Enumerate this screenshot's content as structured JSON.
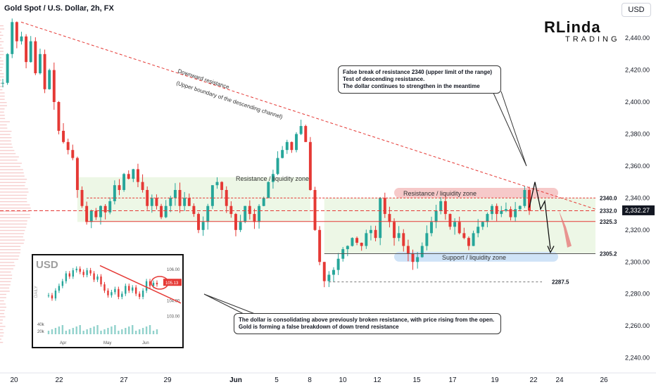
{
  "header": {
    "title": "Gold Spot / U.S. Dollar, 2h, FX"
  },
  "currency_button": "USD",
  "logo": {
    "main": "RLinda",
    "sub": "TRADING"
  },
  "annotations": {
    "downtrend_line1": "Downward resistance",
    "downtrend_line2": "(Upper boundary of the descending channel)",
    "zone_left": "Resistance / liquidity zone",
    "zone_right_res": "Resistance / liquidity zone",
    "zone_right_sup": "Support / liquidity zone",
    "callout_top": [
      "False break of resistance 2340 (upper limit of the range)",
      "Test of descending resistance.",
      "The dollar continues to strengthen in the meantime"
    ],
    "callout_bottom": [
      "The dollar is consolidating above previously broken resistance, with price rising from the open.",
      "Gold is forming a false breakdown of down trend resistance"
    ]
  },
  "colors": {
    "up": "#26a69a",
    "down": "#e53935",
    "line_red": "#e53935",
    "zone_green": "#e8f5e0",
    "zone_red": "#f6c9c9",
    "zone_blue": "#cfe3f7",
    "price_tag": "#131722"
  },
  "chart_data": {
    "type": "candlestick",
    "symbol": "Gold Spot / U.S. Dollar",
    "timeframe": "2h",
    "ylim": [
      2235,
      2455
    ],
    "yticks": [
      2440,
      2420,
      2400,
      2380,
      2360,
      2340,
      2320,
      2300,
      2280,
      2260,
      2240
    ],
    "ytick_labels": [
      "2,440.00",
      "2,420.00",
      "2,400.00",
      "2,380.00",
      "2,360.00",
      "2,340.00",
      "2,320.00",
      "2,300.00",
      "2,280.00",
      "2,260.00",
      "2,240.00"
    ],
    "xticks": [
      "20",
      "22",
      "27",
      "29",
      "Jun",
      "5",
      "8",
      "10",
      "12",
      "15",
      "17",
      "19",
      "22",
      "24",
      "26"
    ],
    "levels": [
      {
        "label": "2340.0",
        "value": 2340
      },
      {
        "label": "2332.0",
        "value": 2332
      },
      {
        "label": "2325.3",
        "value": 2325.3
      },
      {
        "label": "2305.2",
        "value": 2305.2
      },
      {
        "label": "2287.5",
        "value": 2287.5
      }
    ],
    "last_price": {
      "label": "2,332.27",
      "value": 2332.27
    },
    "zones": [
      {
        "label": "Resistance / liquidity zone",
        "low": 2325,
        "high": 2353
      },
      {
        "label": "Resistance / liquidity zone",
        "low": 2340,
        "high": 2345
      },
      {
        "label": "Support / liquidity zone",
        "low": 2298,
        "high": 2305
      }
    ],
    "trendline": {
      "label": "Downward resistance",
      "from": 2450,
      "to": 2333
    },
    "path": [
      2412,
      2430,
      2450,
      2438,
      2441,
      2425,
      2438,
      2418,
      2430,
      2408,
      2420,
      2400,
      2382,
      2375,
      2370,
      2365,
      2345,
      2335,
      2325,
      2332,
      2328,
      2335,
      2331,
      2338,
      2348,
      2345,
      2355,
      2352,
      2358,
      2350,
      2345,
      2335,
      2340,
      2335,
      2328,
      2335,
      2340,
      2345,
      2335,
      2340,
      2335,
      2330,
      2320,
      2325,
      2335,
      2348,
      2350,
      2345,
      2335,
      2330,
      2320,
      2325,
      2335,
      2330,
      2325,
      2335,
      2340,
      2350,
      2355,
      2365,
      2370,
      2375,
      2370,
      2380,
      2385,
      2375,
      2345,
      2320,
      2300,
      2288,
      2292,
      2295,
      2302,
      2308,
      2310,
      2315,
      2312,
      2310,
      2318,
      2320,
      2315,
      2340,
      2330,
      2325,
      2315,
      2318,
      2310,
      2305,
      2300,
      2303,
      2310,
      2318,
      2325,
      2332,
      2338,
      2330,
      2322,
      2325,
      2318,
      2315,
      2310,
      2318,
      2322,
      2325,
      2330,
      2335,
      2330,
      2332,
      2333,
      2328,
      2333,
      2335,
      2345,
      2332
    ],
    "inset": {
      "title": "USD",
      "ytick_labels": [
        "106.00",
        "104.00",
        "103.00"
      ],
      "xtick_labels": [
        "Apr",
        "May",
        "Jun"
      ],
      "vol_labels": [
        "40k",
        "20k"
      ],
      "side_label": "DAILY",
      "last_label": "105.13",
      "path": [
        104.3,
        104.1,
        104.6,
        104.9,
        105.2,
        105.7,
        105.5,
        105.9,
        106.0,
        105.8,
        105.6,
        105.9,
        105.7,
        105.3,
        105.5,
        105.0,
        104.6,
        104.3,
        104.5,
        104.7,
        104.2,
        104.4,
        104.9,
        104.6,
        104.8,
        104.4,
        104.2,
        104.6,
        105.2,
        104.9,
        105.1,
        105.0
      ]
    }
  }
}
